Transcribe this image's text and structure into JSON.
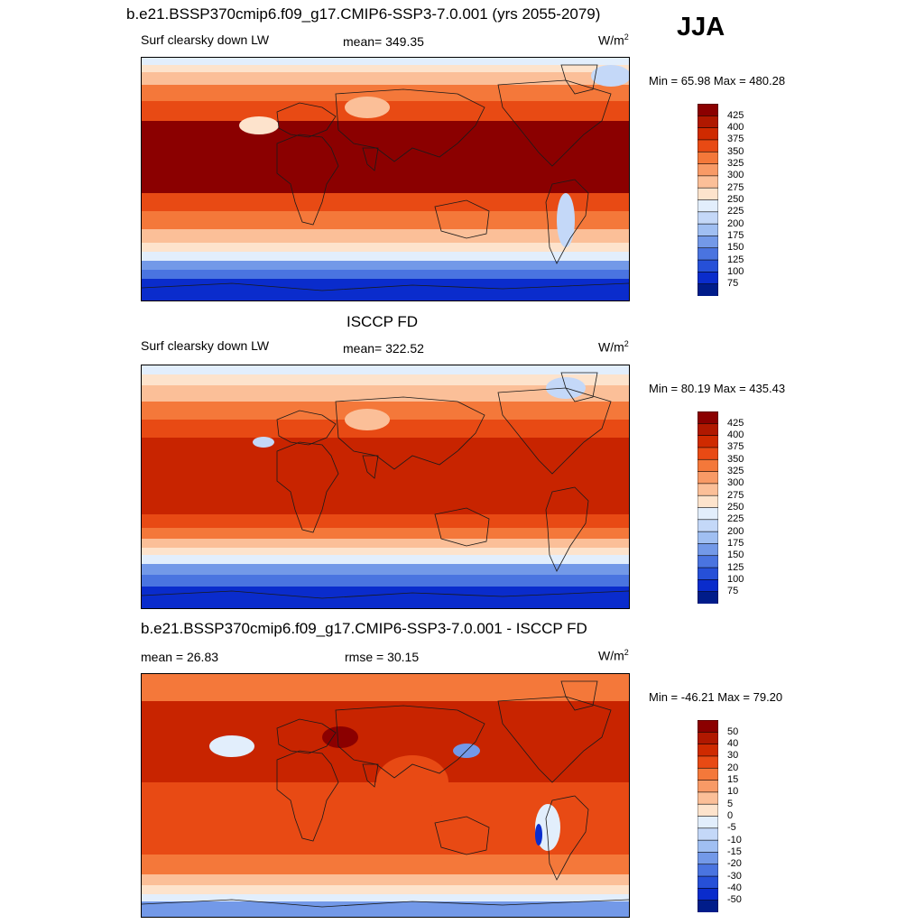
{
  "header": {
    "title": "b.e21.BSSP370cmip6.f09_g17.CMIP6-SSP3-7.0.001 (yrs 2055-2079)",
    "season": "JJA"
  },
  "panels": [
    {
      "id": "model",
      "left_label": "Surf clearsky down LW",
      "center_label": "mean= 349.35",
      "unit": "W/m",
      "unit_sup": "2",
      "minmax": "Min =  65.98 Max = 480.28",
      "colorbar": {
        "ticks": [
          "425",
          "400",
          "375",
          "350",
          "325",
          "300",
          "275",
          "250",
          "225",
          "200",
          "175",
          "150",
          "125",
          "100",
          "75"
        ],
        "colors": [
          "#8b0000",
          "#b01800",
          "#cf2a00",
          "#e84a14",
          "#f4783a",
          "#f89a66",
          "#fbbf98",
          "#fde3cc",
          "#e2eefc",
          "#c4d8f8",
          "#a0bff2",
          "#7399e8",
          "#4a74e0",
          "#2650d8",
          "#0a2ccc",
          "#001c8a"
        ]
      }
    },
    {
      "id": "obs",
      "title": "ISCCP FD",
      "left_label": "Surf clearsky down LW",
      "center_label": "mean= 322.52",
      "unit": "W/m",
      "unit_sup": "2",
      "minmax": "Min =  80.19 Max = 435.43",
      "colorbar": {
        "ticks": [
          "425",
          "400",
          "375",
          "350",
          "325",
          "300",
          "275",
          "250",
          "225",
          "200",
          "175",
          "150",
          "125",
          "100",
          "75"
        ],
        "colors": [
          "#8b0000",
          "#b01800",
          "#cf2a00",
          "#e84a14",
          "#f4783a",
          "#f89a66",
          "#fbbf98",
          "#fde3cc",
          "#e2eefc",
          "#c4d8f8",
          "#a0bff2",
          "#7399e8",
          "#4a74e0",
          "#2650d8",
          "#0a2ccc",
          "#001c8a"
        ]
      }
    },
    {
      "id": "diff",
      "title": "b.e21.BSSP370cmip6.f09_g17.CMIP6-SSP3-7.0.001 - ISCCP FD",
      "left_label": "mean =  26.83",
      "center_label": "rmse =  30.15",
      "unit": "W/m",
      "unit_sup": "2",
      "minmax": "Min = -46.21 Max =  79.20",
      "colorbar": {
        "ticks": [
          "50",
          "40",
          "30",
          "20",
          "15",
          "10",
          "5",
          "0",
          "-5",
          "-10",
          "-15",
          "-20",
          "-30",
          "-40",
          "-50"
        ],
        "colors": [
          "#8b0000",
          "#b01800",
          "#cf2a00",
          "#e84a14",
          "#f4783a",
          "#f89a66",
          "#fbbf98",
          "#fde3cc",
          "#e2eefc",
          "#c4d8f8",
          "#a0bff2",
          "#7399e8",
          "#4a74e0",
          "#2650d8",
          "#0a2ccc",
          "#001c8a"
        ]
      }
    }
  ],
  "map_colors": {
    "deep_red": "#8b0000",
    "red": "#c82400",
    "orange_red": "#e84a14",
    "orange": "#f4783a",
    "salmon": "#f89a66",
    "peach": "#fbbf98",
    "light_peach": "#fde3cc",
    "pale_blue": "#e2eefc",
    "light_blue": "#c4d8f8",
    "blue": "#7399e8",
    "mid_blue": "#4a74e0",
    "dark_blue": "#0a2ccc",
    "navy": "#001c8a"
  }
}
